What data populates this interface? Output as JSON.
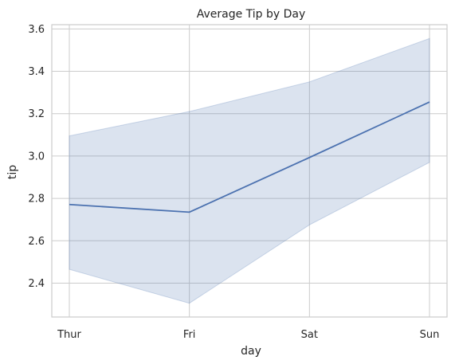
{
  "chart_data": {
    "type": "line",
    "title": "Average Tip by Day",
    "xlabel": "day",
    "ylabel": "tip",
    "categories": [
      "Thur",
      "Fri",
      "Sat",
      "Sun"
    ],
    "series": [
      {
        "values": [
          2.771,
          2.735,
          2.993,
          3.255
        ],
        "ci_low": [
          2.465,
          2.305,
          2.675,
          2.97
        ],
        "ci_high": [
          3.095,
          3.21,
          3.35,
          3.555
        ],
        "color": "#4c72b0"
      }
    ],
    "ylim": [
      2.24,
      3.62
    ],
    "yticks": [
      2.4,
      2.6,
      2.8,
      3.0,
      3.2,
      3.4,
      3.6
    ],
    "ytick_labels": [
      "2.4",
      "2.6",
      "2.8",
      "3.0",
      "3.2",
      "3.4",
      "3.6"
    ],
    "grid": true,
    "band_color": "#4c72b0"
  }
}
